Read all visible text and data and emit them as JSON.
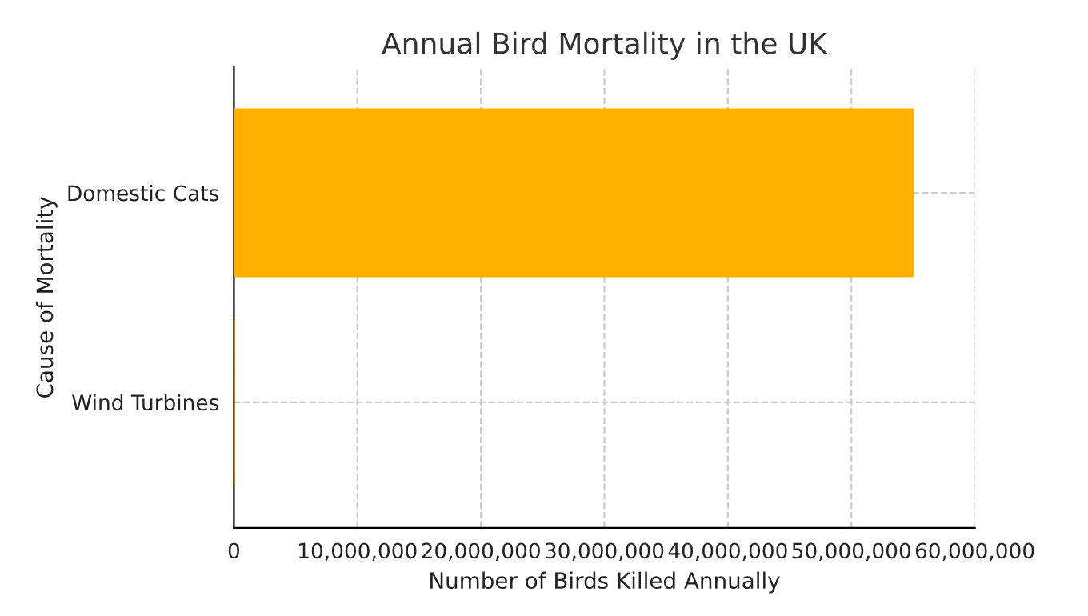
{
  "chart_data": {
    "type": "bar",
    "orientation": "horizontal",
    "title": "Annual Bird Mortality in the UK",
    "xlabel": "Number of Birds Killed Annually",
    "ylabel": "Cause of Mortality",
    "categories": [
      "Domestic Cats",
      "Wind Turbines"
    ],
    "values": [
      55000000,
      0
    ],
    "color": "#ffb000",
    "xlim": [
      0,
      60000000
    ],
    "xticks": [
      {
        "value": 0,
        "label": "0"
      },
      {
        "value": 10000000,
        "label": "10,000,000"
      },
      {
        "value": 20000000,
        "label": "20,000,000"
      },
      {
        "value": 30000000,
        "label": "30,000,000"
      },
      {
        "value": 40000000,
        "label": "40,000,000"
      },
      {
        "value": 50000000,
        "label": "50,000,000"
      },
      {
        "value": 60000000,
        "label": "60,000,000"
      }
    ],
    "grid": true
  }
}
